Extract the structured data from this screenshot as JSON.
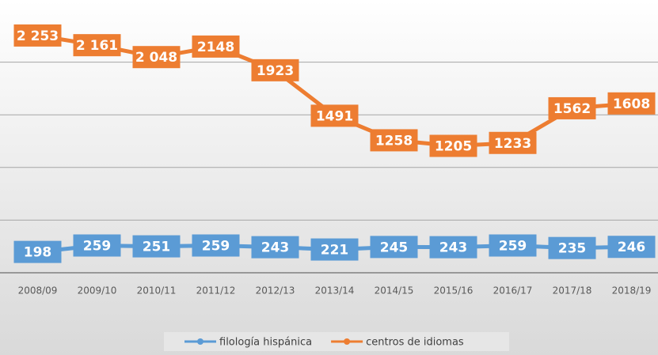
{
  "chart_data": {
    "type": "line",
    "categories": [
      "2008/09",
      "2009/10",
      "2010/11",
      "2011/12",
      "2012/13",
      "2013/14",
      "2014/15",
      "2015/16",
      "2016/17",
      "2017/18",
      "2018/19"
    ],
    "series": [
      {
        "name": "filología hispánica",
        "color": "#5b9bd5",
        "values": [
          198,
          259,
          251,
          259,
          243,
          221,
          245,
          243,
          259,
          235,
          246
        ]
      },
      {
        "name": "centros de idiomas",
        "color": "#ed7d31",
        "values": [
          2253,
          2161,
          2048,
          2148,
          1923,
          1491,
          1258,
          1205,
          1233,
          1562,
          1608
        ],
        "value_labels": [
          "2 253",
          "2 161",
          "2 048",
          "2148",
          "1923",
          "1491",
          "1258",
          "1205",
          "1233",
          "1562",
          "1608"
        ]
      }
    ],
    "ylim": [
      0,
      2500
    ],
    "yticks": [
      0,
      500,
      1000,
      1500,
      2000
    ],
    "grid": true,
    "legend": "bottom"
  }
}
